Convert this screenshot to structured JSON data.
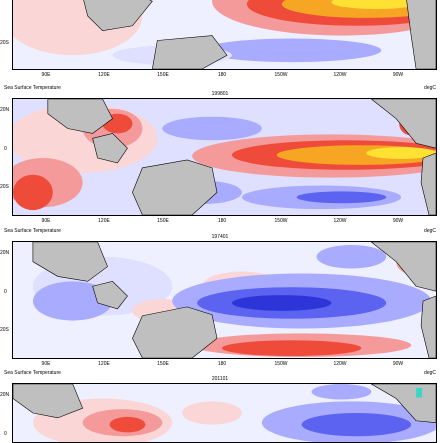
{
  "lat_labels": [
    "20N",
    "0",
    "20S"
  ],
  "lon_labels": [
    "90E",
    "120E",
    "150E",
    "180",
    "150W",
    "120W",
    "90W"
  ],
  "colors": {
    "land": "#bfbfbf",
    "warm_1": "#fbd6d6",
    "warm_2": "#f59a9a",
    "warm_3": "#ee4b3b",
    "warm_4": "#f6a623",
    "warm_5": "#ffe133",
    "cool_1": "#dfe0ff",
    "cool_2": "#a9abff",
    "cool_3": "#5b63f0",
    "cool_4": "#2d35d8"
  },
  "panels": [
    {
      "title": "",
      "variable": "",
      "units": "",
      "pattern": "elnino_top"
    },
    {
      "title": "199801",
      "variable": "Sea Surface Temperature",
      "units": "degC",
      "pattern": "elnino"
    },
    {
      "title": "197401",
      "variable": "Sea Surface Temperature",
      "units": "degC",
      "pattern": "lanina"
    },
    {
      "title": "201101",
      "variable": "Sea Surface Temperature",
      "units": "degC",
      "pattern": "lanina_partial"
    }
  ]
}
